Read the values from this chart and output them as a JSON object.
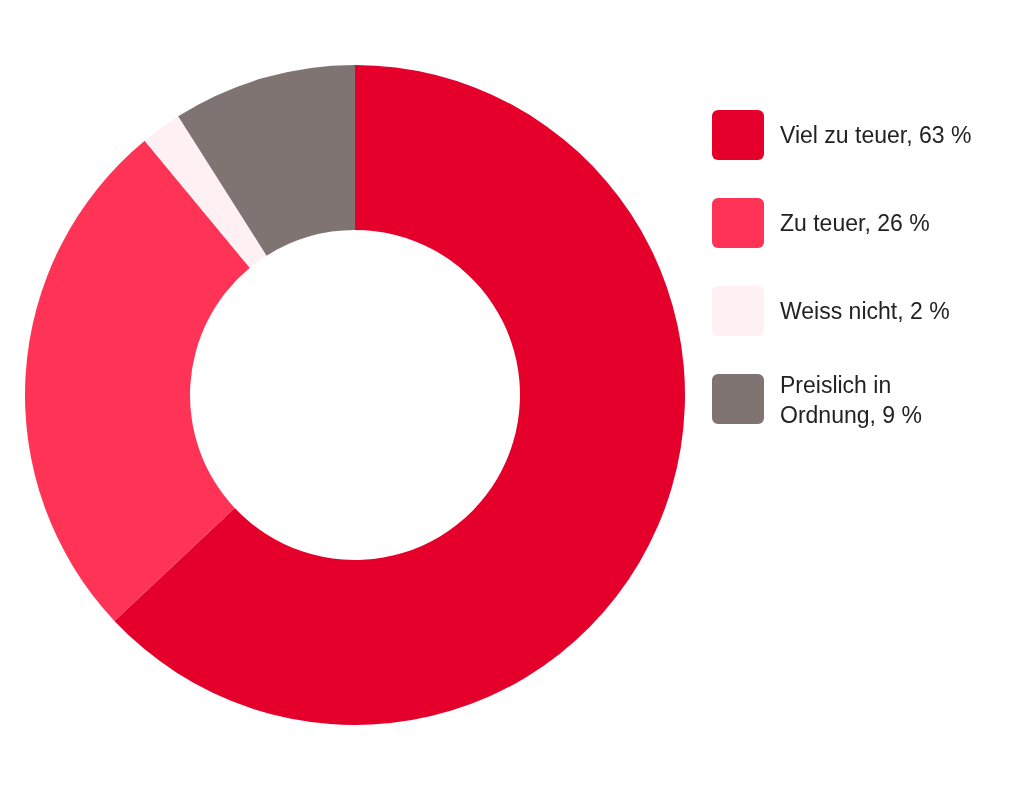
{
  "chart_data": {
    "type": "donut",
    "categories": [
      "Viel zu teuer",
      "Zu teuer",
      "Weiss nicht",
      "Preislich in Ordnung"
    ],
    "values": [
      63,
      26,
      2,
      9
    ],
    "value_labels": [
      "63 %",
      "26 %",
      "2 %",
      "9 %"
    ],
    "colors": [
      "#e4002b",
      "#ff3355",
      "#fff0f3",
      "#807473"
    ],
    "legend": "right"
  }
}
